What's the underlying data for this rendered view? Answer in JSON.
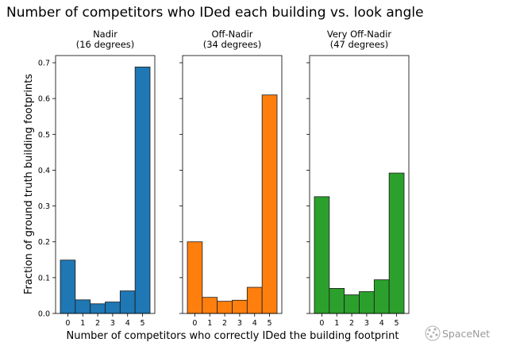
{
  "figure": {
    "title": "Number of competitors who IDed each building vs. look angle",
    "xlabel": "Number of competitors who correctly IDed the building footprint",
    "ylabel": "Fraction of ground truth building footprints",
    "watermark": "SpaceNet"
  },
  "chart_data": [
    {
      "type": "bar",
      "title": "Nadir\n(16 degrees)",
      "categories": [
        "0",
        "1",
        "2",
        "3",
        "4",
        "5"
      ],
      "values": [
        0.149,
        0.038,
        0.027,
        0.032,
        0.063,
        0.688
      ],
      "color": "#1f77b4",
      "ylim": [
        0,
        0.72
      ],
      "yticks": [
        "0.0",
        "0.1",
        "0.2",
        "0.3",
        "0.4",
        "0.5",
        "0.6",
        "0.7"
      ],
      "grid": false
    },
    {
      "type": "bar",
      "title": "Off-Nadir\n(34 degrees)",
      "categories": [
        "0",
        "1",
        "2",
        "3",
        "4",
        "5"
      ],
      "values": [
        0.2,
        0.045,
        0.034,
        0.037,
        0.073,
        0.61
      ],
      "color": "#ff7f0e",
      "ylim": [
        0,
        0.72
      ],
      "grid": false
    },
    {
      "type": "bar",
      "title": "Very Off-Nadir\n(47 degrees)",
      "categories": [
        "0",
        "1",
        "2",
        "3",
        "4",
        "5"
      ],
      "values": [
        0.326,
        0.07,
        0.052,
        0.061,
        0.094,
        0.392
      ],
      "color": "#2ca02c",
      "ylim": [
        0,
        0.72
      ],
      "grid": false
    }
  ]
}
